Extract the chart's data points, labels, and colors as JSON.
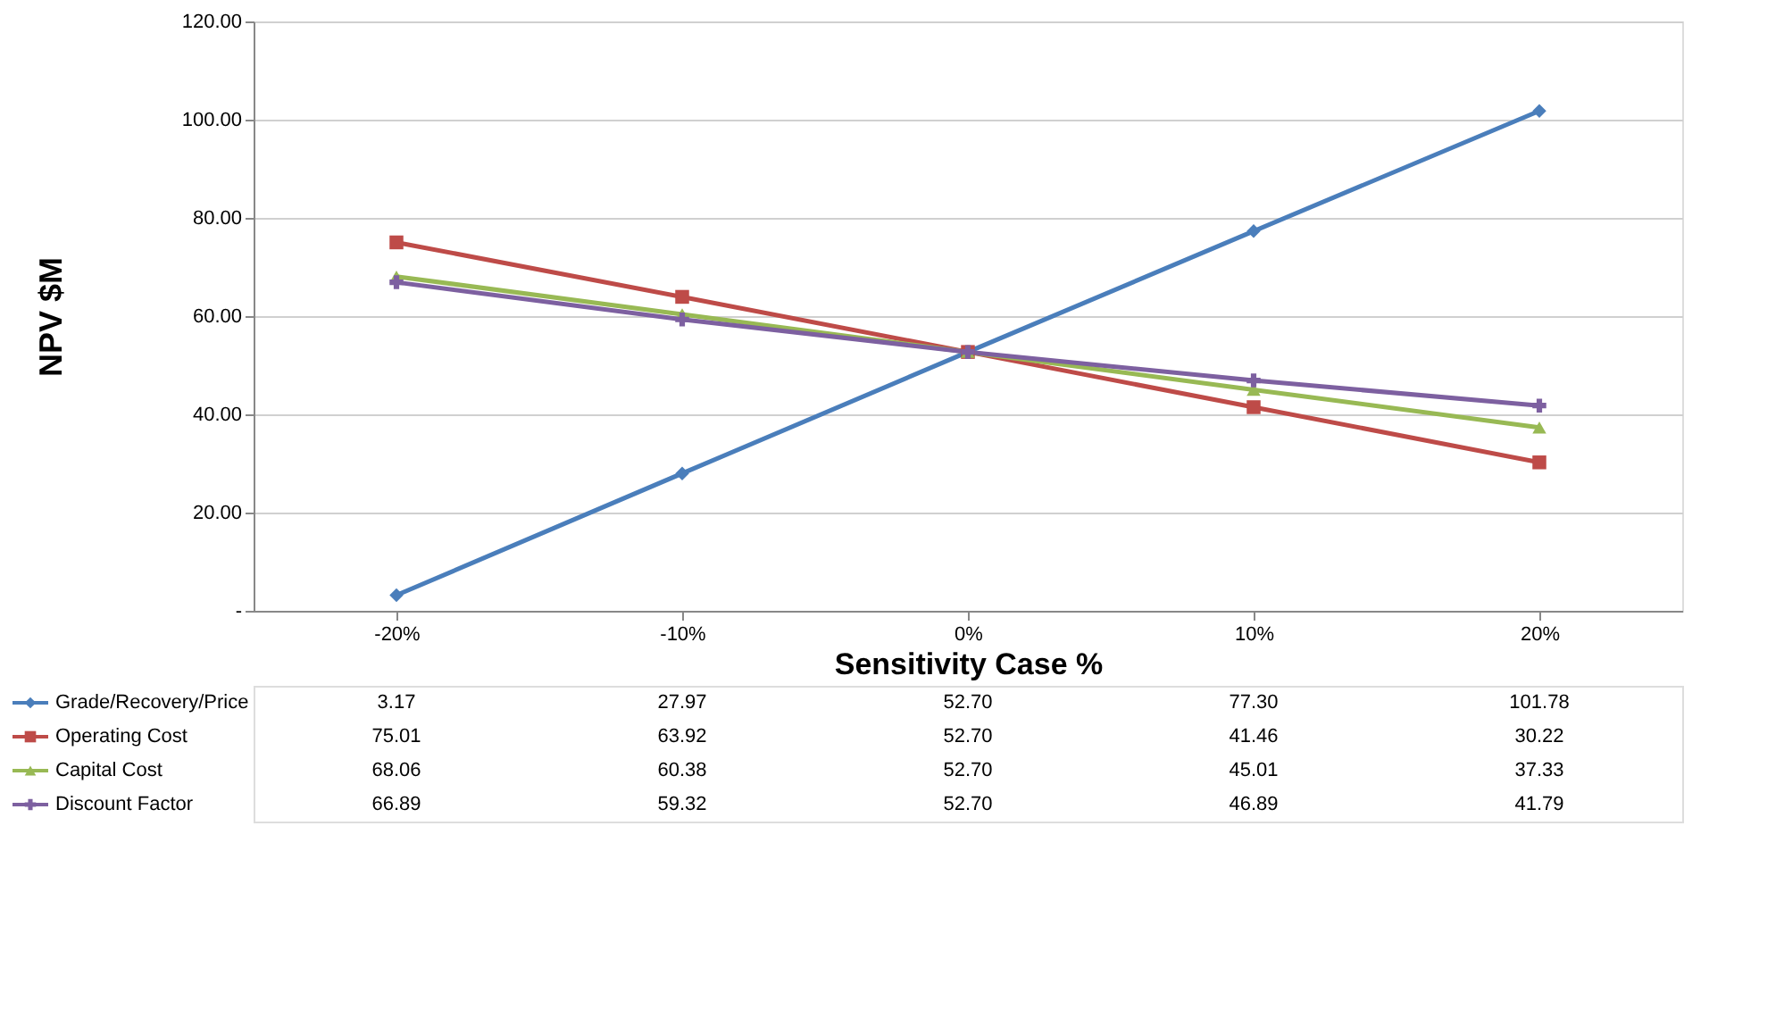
{
  "chart_data": {
    "type": "line",
    "ylabel": "NPV $M",
    "xlabel": "Sensitivity Case %",
    "categories": [
      "-20%",
      "-10%",
      "0%",
      "10%",
      "20%"
    ],
    "series": [
      {
        "name": "Grade/Recovery/Price",
        "color": "#4a7ebb",
        "marker": "diamond",
        "values": [
          3.17,
          27.97,
          52.7,
          77.3,
          101.78
        ],
        "value_labels": [
          "3.17",
          "27.97",
          "52.70",
          "77.30",
          "101.78"
        ]
      },
      {
        "name": "Operating Cost",
        "color": "#be4b48",
        "marker": "square",
        "values": [
          75.01,
          63.92,
          52.7,
          41.46,
          30.22
        ],
        "value_labels": [
          "75.01",
          "63.92",
          "52.70",
          "41.46",
          "30.22"
        ]
      },
      {
        "name": "Capital Cost",
        "color": "#98b954",
        "marker": "triangle",
        "values": [
          68.06,
          60.38,
          52.7,
          45.01,
          37.33
        ],
        "value_labels": [
          "68.06",
          "60.38",
          "52.70",
          "45.01",
          "37.33"
        ]
      },
      {
        "name": "Discount Factor",
        "color": "#7d60a0",
        "marker": "cross",
        "values": [
          66.89,
          59.32,
          52.7,
          46.89,
          41.79
        ],
        "value_labels": [
          "66.89",
          "59.32",
          "52.70",
          "46.89",
          "41.79"
        ]
      }
    ],
    "ylim": [
      0,
      120
    ],
    "yticks": [
      {
        "value": 0,
        "label": "-"
      },
      {
        "value": 20,
        "label": "20.00"
      },
      {
        "value": 40,
        "label": "40.00"
      },
      {
        "value": 60,
        "label": "60.00"
      },
      {
        "value": 80,
        "label": "80.00"
      },
      {
        "value": 100,
        "label": "100.00"
      },
      {
        "value": 120,
        "label": "120.00"
      }
    ],
    "grid": "y",
    "legend": "bottom",
    "line_style": "solid"
  }
}
